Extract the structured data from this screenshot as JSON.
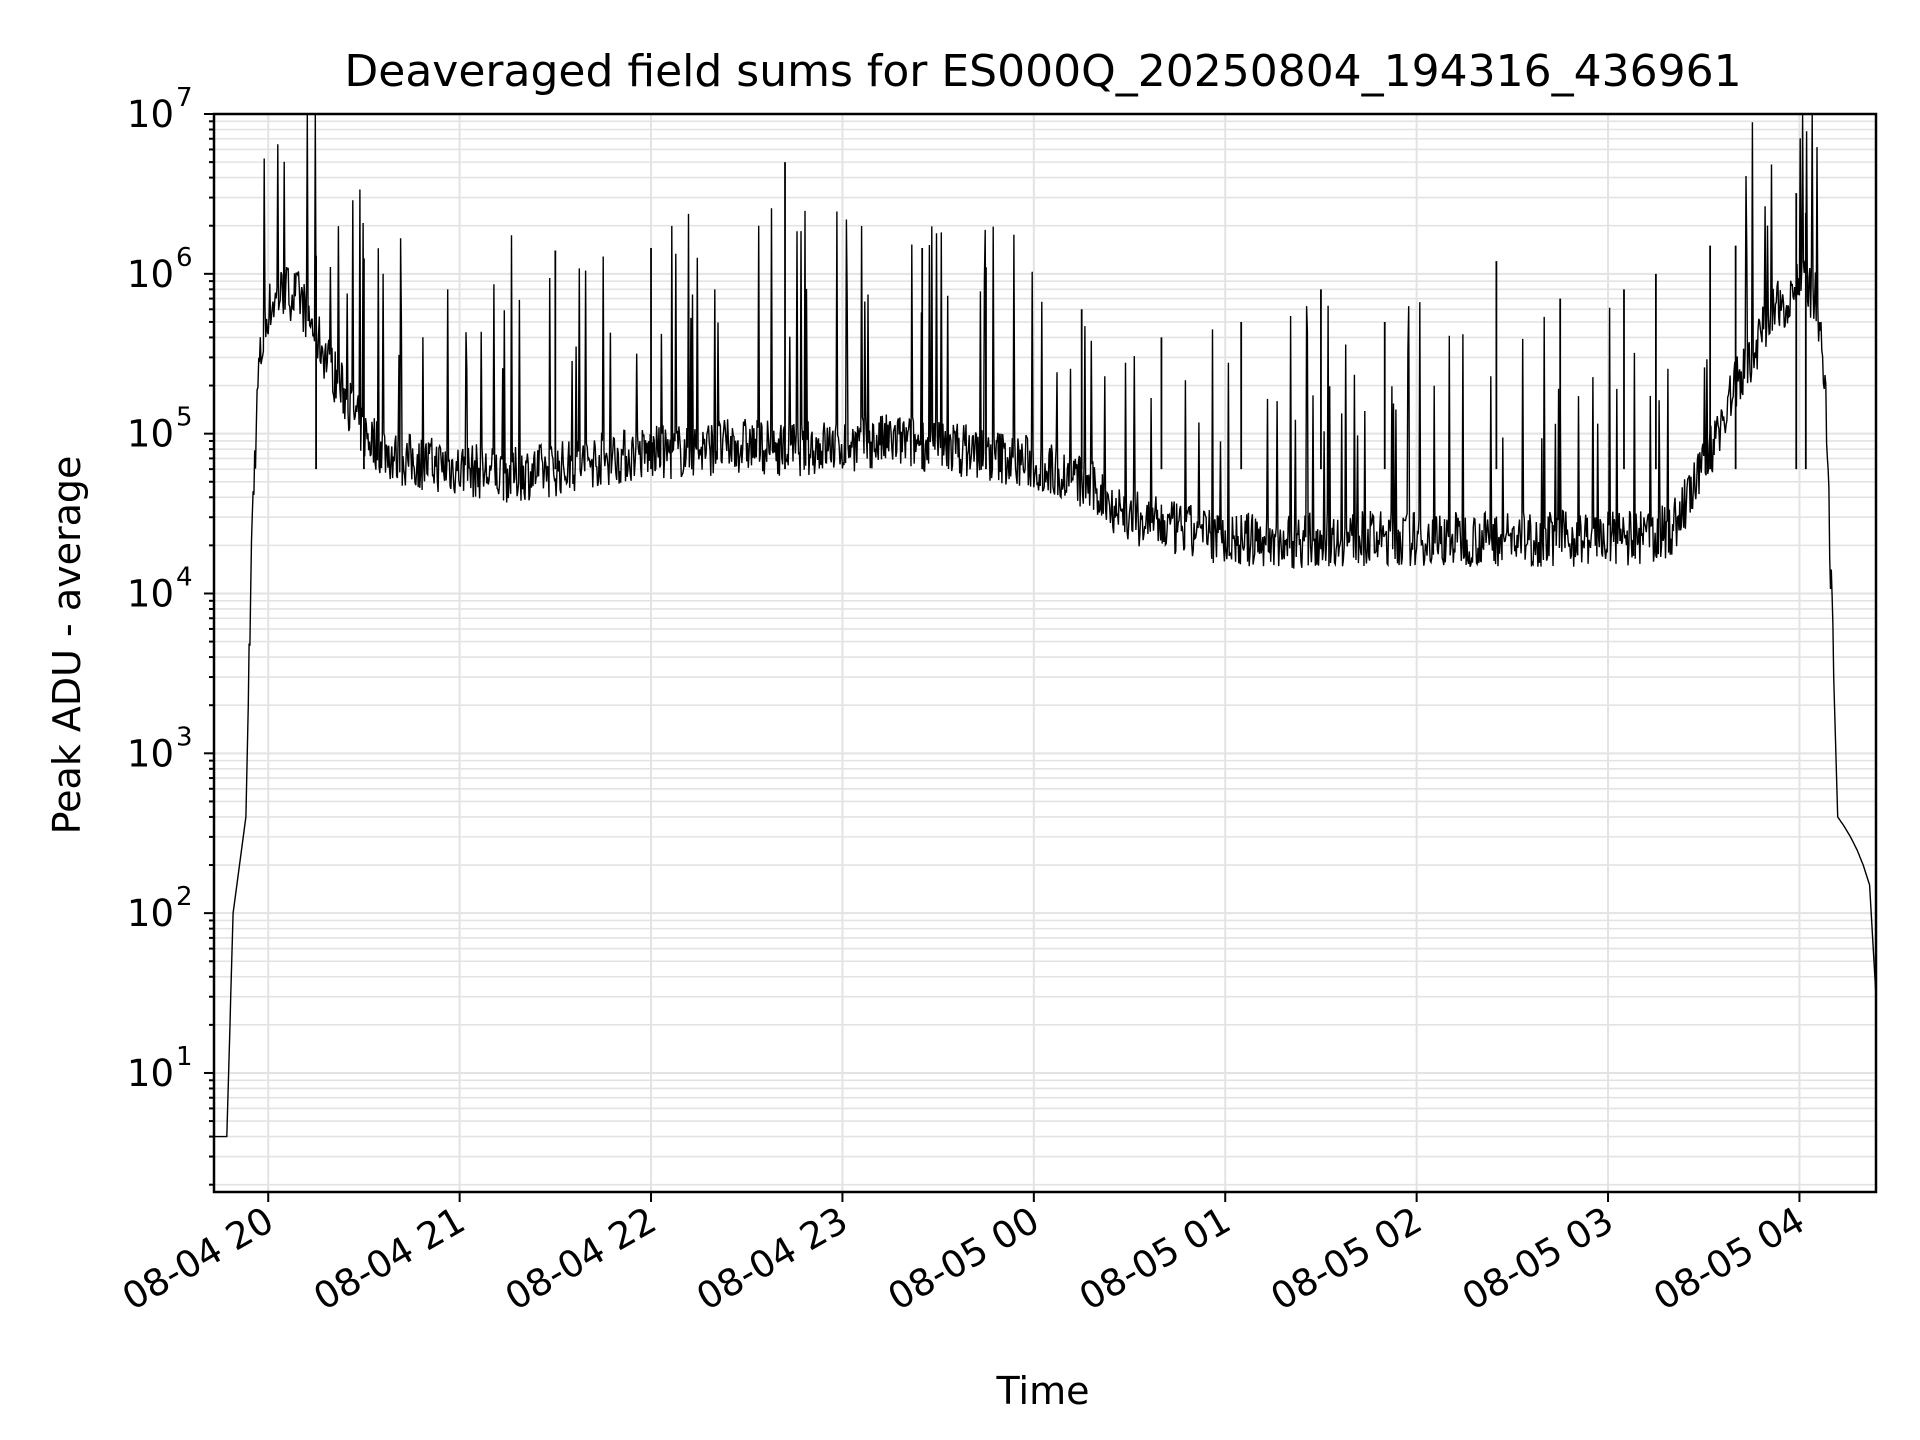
{
  "chart_data": {
    "type": "line",
    "title": "Deaveraged field sums for ES000Q_20250804_194316_436961",
    "xlabel": "Time",
    "ylabel": "Peak ADU - average",
    "yscale": "log",
    "ylim": [
      1.8,
      10000000
    ],
    "xlim": [
      "2025-08-04 19:43",
      "2025-08-05 04:24"
    ],
    "grid": true,
    "line_color": "#000000",
    "grid_color": "#e3e3e3",
    "x_ticks": [
      {
        "value": "2025-08-04 20:00",
        "label": "08-04 20"
      },
      {
        "value": "2025-08-04 21:00",
        "label": "08-04 21"
      },
      {
        "value": "2025-08-04 22:00",
        "label": "08-04 22"
      },
      {
        "value": "2025-08-04 23:00",
        "label": "08-04 23"
      },
      {
        "value": "2025-08-05 00:00",
        "label": "08-05 00"
      },
      {
        "value": "2025-08-05 01:00",
        "label": "08-05 01"
      },
      {
        "value": "2025-08-05 02:00",
        "label": "08-05 02"
      },
      {
        "value": "2025-08-05 03:00",
        "label": "08-05 03"
      },
      {
        "value": "2025-08-05 04:00",
        "label": "08-05 04"
      }
    ],
    "y_ticks": [
      {
        "value": 10,
        "base": "10",
        "exp": "1"
      },
      {
        "value": 100,
        "base": "10",
        "exp": "2"
      },
      {
        "value": 1000,
        "base": "10",
        "exp": "3"
      },
      {
        "value": 10000,
        "base": "10",
        "exp": "4"
      },
      {
        "value": 100000,
        "base": "10",
        "exp": "5"
      },
      {
        "value": 1000000,
        "base": "10",
        "exp": "6"
      },
      {
        "value": 10000000,
        "base": "10",
        "exp": "7"
      }
    ],
    "series": [
      {
        "x": [
          "2025-08-04 19:43",
          "2025-08-04 19:45",
          "2025-08-04 19:47",
          "2025-08-04 19:49",
          "2025-08-04 19:51",
          "2025-08-04 19:53",
          "2025-08-04 19:55",
          "2025-08-04 19:57",
          "2025-08-04 20:00",
          "2025-08-04 20:05",
          "2025-08-04 20:10",
          "2025-08-04 20:20",
          "2025-08-04 20:30",
          "2025-08-04 20:40",
          "2025-08-04 20:50",
          "2025-08-04 21:00",
          "2025-08-04 21:15",
          "2025-08-04 21:30",
          "2025-08-04 21:45",
          "2025-08-04 22:00",
          "2025-08-04 22:15",
          "2025-08-04 22:30",
          "2025-08-04 22:45",
          "2025-08-04 23:00",
          "2025-08-04 23:15",
          "2025-08-04 23:30",
          "2025-08-04 23:45",
          "2025-08-05 00:00",
          "2025-08-05 00:15",
          "2025-08-05 00:30",
          "2025-08-05 00:45",
          "2025-08-05 01:00",
          "2025-08-05 01:15",
          "2025-08-05 01:30",
          "2025-08-05 01:45",
          "2025-08-05 02:00",
          "2025-08-05 02:15",
          "2025-08-05 02:30",
          "2025-08-05 02:45",
          "2025-08-05 03:00",
          "2025-08-05 03:10",
          "2025-08-05 03:20",
          "2025-08-05 03:30",
          "2025-08-05 03:40",
          "2025-08-05 03:50",
          "2025-08-05 04:00",
          "2025-08-05 04:05",
          "2025-08-05 04:08",
          "2025-08-05 04:10",
          "2025-08-05 04:12",
          "2025-08-05 04:14",
          "2025-08-05 04:16",
          "2025-08-05 04:18",
          "2025-08-05 04:20",
          "2025-08-05 04:22",
          "2025-08-05 04:24"
        ],
        "y": [
          4,
          4,
          4,
          100,
          200,
          400,
          30000,
          250000,
          600000,
          800000,
          700000,
          250000,
          100000,
          70000,
          65000,
          60000,
          55000,
          60000,
          70000,
          75000,
          80000,
          85000,
          80000,
          85000,
          90000,
          85000,
          75000,
          65000,
          50000,
          30000,
          25000,
          22000,
          21000,
          22000,
          22000,
          22000,
          22000,
          22000,
          22000,
          22000,
          22000,
          25000,
          60000,
          200000,
          500000,
          900000,
          700000,
          200000,
          10000,
          400,
          350,
          300,
          250,
          200,
          150,
          30
        ]
      }
    ],
    "spikes": [
      {
        "x": "2025-08-04 22:42",
        "y": 5000000
      },
      {
        "x": "2025-08-05 03:59",
        "y": 3200000
      },
      {
        "x": "2025-08-05 04:02",
        "y": 2400000
      },
      {
        "x": "2025-08-04 20:15",
        "y": 1300000
      },
      {
        "x": "2025-08-04 20:30",
        "y": 1250000
      },
      {
        "x": "2025-08-04 21:30",
        "y": 1400000
      },
      {
        "x": "2025-08-04 22:00",
        "y": 1450000
      },
      {
        "x": "2025-08-04 23:25",
        "y": 1450000
      },
      {
        "x": "2025-08-04 23:45",
        "y": 1100000
      },
      {
        "x": "2025-08-05 00:15",
        "y": 600000
      },
      {
        "x": "2025-08-05 00:40",
        "y": 400000
      },
      {
        "x": "2025-08-05 01:05",
        "y": 500000
      },
      {
        "x": "2025-08-05 01:30",
        "y": 800000
      },
      {
        "x": "2025-08-05 01:50",
        "y": 500000
      },
      {
        "x": "2025-08-05 02:25",
        "y": 1200000
      },
      {
        "x": "2025-08-05 02:45",
        "y": 700000
      },
      {
        "x": "2025-08-05 03:05",
        "y": 800000
      },
      {
        "x": "2025-08-05 03:15",
        "y": 1000000
      },
      {
        "x": "2025-08-05 03:32",
        "y": 1500000
      },
      {
        "x": "2025-08-05 03:40",
        "y": 1500000
      }
    ]
  }
}
